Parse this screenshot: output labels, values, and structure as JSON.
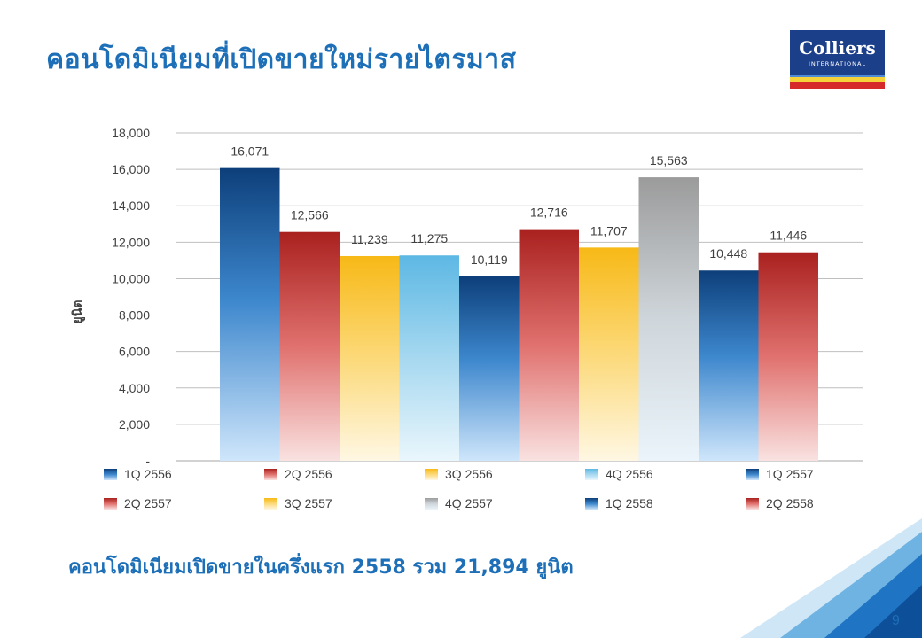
{
  "title": "คอนโดมิเนียมที่เปิดขายใหม่รายไตรมาส",
  "logo": {
    "name": "Colliers",
    "sub": "INTERNATIONAL"
  },
  "summary": "คอนโดมิเนียมเปิดขายในครึ่งแรก 2558 รวม 21,894 ยูนิต",
  "page_number": "9",
  "colors": {
    "title": "#1d6fb8",
    "navy": "#1c3f8a"
  },
  "chart_data": {
    "type": "bar",
    "ylabel": "ยูนิต",
    "ylim": [
      0,
      18000
    ],
    "yticks": [
      0,
      2000,
      4000,
      6000,
      8000,
      10000,
      12000,
      14000,
      16000,
      18000
    ],
    "ytick_labels": [
      "-",
      "2,000",
      "4,000",
      "6,000",
      "8,000",
      "10,000",
      "12,000",
      "14,000",
      "16,000",
      "18,000"
    ],
    "grid": true,
    "legend_position": "bottom",
    "series": [
      {
        "name": "1Q 2556",
        "value": 16071,
        "label": "16,071",
        "style": "blue"
      },
      {
        "name": "2Q 2556",
        "value": 12566,
        "label": "12,566",
        "style": "red"
      },
      {
        "name": "3Q 2556",
        "value": 11239,
        "label": "11,239",
        "style": "yellow"
      },
      {
        "name": "4Q 2556",
        "value": 11275,
        "label": "11,275",
        "style": "lightblue"
      },
      {
        "name": "1Q 2557",
        "value": 10119,
        "label": "10,119",
        "style": "blue"
      },
      {
        "name": "2Q 2557",
        "value": 12716,
        "label": "12,716",
        "style": "red"
      },
      {
        "name": "3Q 2557",
        "value": 11707,
        "label": "11,707",
        "style": "yellow"
      },
      {
        "name": "4Q 2557",
        "value": 15563,
        "label": "15,563",
        "style": "gray"
      },
      {
        "name": "1Q 2558",
        "value": 10448,
        "label": "10,448",
        "style": "blue"
      },
      {
        "name": "2Q 2558",
        "value": 11446,
        "label": "11,446",
        "style": "red"
      }
    ]
  }
}
